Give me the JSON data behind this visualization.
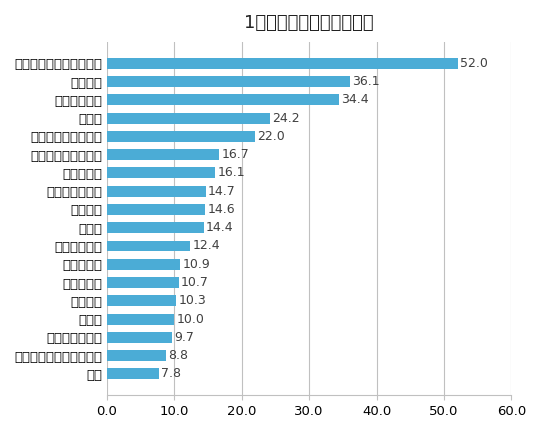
{
  "title": "1か月あたりの平均投稿数",
  "categories": [
    "食品・飲食（ブランド）",
    "メディア",
    "ファッション",
    "小売り",
    "エンターテイメント",
    "住宅・建設・不動産",
    "電機・通信",
    "ライフスタイル",
    "サービス",
    "官公庁",
    "美容・化粧品",
    "交通・輸送",
    "金融・保険",
    "インフラ",
    "日用品",
    "学校・教育機関",
    "食品・飲食（メディア）",
    "外食"
  ],
  "values": [
    52.0,
    36.1,
    34.4,
    24.2,
    22.0,
    16.7,
    16.1,
    14.7,
    14.6,
    14.4,
    12.4,
    10.9,
    10.7,
    10.3,
    10.0,
    9.7,
    8.8,
    7.8
  ],
  "bar_color": "#4BACD6",
  "xlim": [
    0,
    60
  ],
  "xticks": [
    0.0,
    10.0,
    20.0,
    30.0,
    40.0,
    50.0,
    60.0
  ],
  "background_color": "#ffffff",
  "grid_color": "#c0c0c0",
  "value_label_color": "#404040",
  "title_fontsize": 13,
  "tick_fontsize": 9.5,
  "value_fontsize": 9
}
